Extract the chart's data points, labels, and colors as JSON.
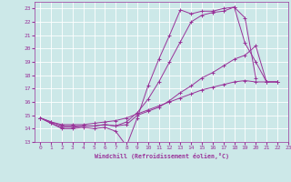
{
  "background_color": "#cce8e8",
  "grid_color": "#b0d0d0",
  "line_color": "#993399",
  "xlabel": "Windchill (Refroidissement éolien,°C)",
  "xlim": [
    -0.5,
    23
  ],
  "ylim": [
    13,
    23.5
  ],
  "yticks": [
    13,
    14,
    15,
    16,
    17,
    18,
    19,
    20,
    21,
    22,
    23
  ],
  "xticks": [
    0,
    1,
    2,
    3,
    4,
    5,
    6,
    7,
    8,
    9,
    10,
    11,
    12,
    13,
    14,
    15,
    16,
    17,
    18,
    19,
    20,
    21,
    22,
    23
  ],
  "series": [
    {
      "x": [
        0,
        1,
        2,
        3,
        4,
        5,
        6,
        7,
        8,
        9,
        10,
        11,
        12,
        13,
        14,
        15,
        16,
        17,
        18,
        19,
        20,
        21,
        22
      ],
      "y": [
        14.8,
        14.4,
        14.0,
        14.0,
        14.1,
        14.0,
        14.1,
        13.8,
        12.7,
        14.8,
        17.2,
        19.2,
        21.0,
        22.9,
        22.6,
        22.8,
        22.8,
        23.0,
        23.1,
        20.4,
        19.0,
        17.5,
        17.5
      ]
    },
    {
      "x": [
        0,
        1,
        2,
        3,
        4,
        5,
        6,
        7,
        8,
        9,
        10,
        11,
        12,
        13,
        14,
        15,
        16,
        17,
        18,
        19,
        20
      ],
      "y": [
        14.8,
        14.4,
        14.1,
        14.1,
        14.2,
        14.2,
        14.3,
        14.2,
        14.5,
        15.2,
        16.2,
        17.5,
        19.0,
        20.5,
        22.0,
        22.5,
        22.7,
        22.8,
        23.1,
        22.3,
        17.8
      ]
    },
    {
      "x": [
        0,
        1,
        2,
        3,
        4,
        5,
        6,
        7,
        8,
        9,
        10,
        11,
        12,
        13,
        14,
        15,
        16,
        17,
        18,
        19,
        20,
        21,
        22
      ],
      "y": [
        14.8,
        14.5,
        14.2,
        14.2,
        14.2,
        14.2,
        14.3,
        14.2,
        14.3,
        15.0,
        15.3,
        15.6,
        16.1,
        16.7,
        17.2,
        17.8,
        18.2,
        18.7,
        19.2,
        19.5,
        20.2,
        17.5,
        17.5
      ]
    },
    {
      "x": [
        0,
        1,
        2,
        3,
        4,
        5,
        6,
        7,
        8,
        9,
        10,
        11,
        12,
        13,
        14,
        15,
        16,
        17,
        18,
        19,
        20,
        21,
        22
      ],
      "y": [
        14.8,
        14.5,
        14.3,
        14.3,
        14.3,
        14.4,
        14.5,
        14.6,
        14.8,
        15.1,
        15.4,
        15.7,
        16.0,
        16.3,
        16.6,
        16.9,
        17.1,
        17.3,
        17.5,
        17.6,
        17.5,
        17.5,
        17.5
      ]
    }
  ]
}
